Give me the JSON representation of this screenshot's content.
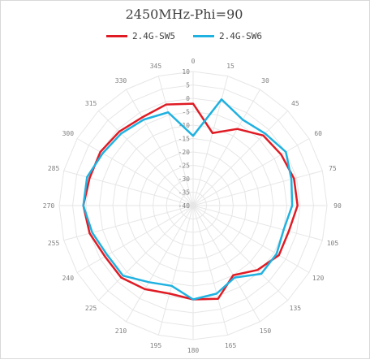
{
  "chart_data": {
    "type": "radar",
    "title": "2450MHz-Phi=90",
    "legend_position": "top",
    "angles": [
      0,
      15,
      30,
      45,
      60,
      75,
      90,
      105,
      120,
      135,
      150,
      165,
      180,
      195,
      210,
      225,
      240,
      255,
      270,
      285,
      300,
      315,
      330,
      345
    ],
    "angle_labels": [
      "0",
      "15",
      "30",
      "45",
      "60",
      "75",
      "90",
      "105",
      "120",
      "135",
      "150",
      "165",
      "180",
      "195",
      "210",
      "225",
      "240",
      "255",
      "270",
      "285",
      "300",
      "315",
      "330",
      "345"
    ],
    "r_ticks": [
      10,
      5,
      0,
      -5,
      -10,
      -15,
      -20,
      -25,
      -30,
      -35,
      -40
    ],
    "r_tick_labels": [
      "10",
      "5",
      "0",
      "-5",
      "-10",
      "-15",
      "-20",
      "-25",
      "-30",
      "-35",
      "-40"
    ],
    "rlim": [
      -40,
      10
    ],
    "grid": true,
    "series": [
      {
        "name": "2.4G-SW5",
        "color": "#e01b24",
        "values": [
          -2,
          -12,
          -7,
          -3,
          -2,
          -1,
          -1,
          -3,
          -3,
          -6,
          -10,
          -4,
          -5,
          -6,
          -4,
          -2,
          -2,
          0,
          1,
          0,
          0,
          -1,
          -2,
          -1
        ]
      },
      {
        "name": "2.4G-SW6",
        "color": "#1fb1e0",
        "values": [
          -14,
          1,
          -3,
          -2,
          0,
          -2,
          -3,
          -5,
          -4,
          -4,
          -9,
          -6,
          -5,
          -9,
          -7,
          -3,
          -3,
          -1,
          1,
          1,
          -1,
          -2,
          -3,
          -4
        ]
      }
    ]
  }
}
